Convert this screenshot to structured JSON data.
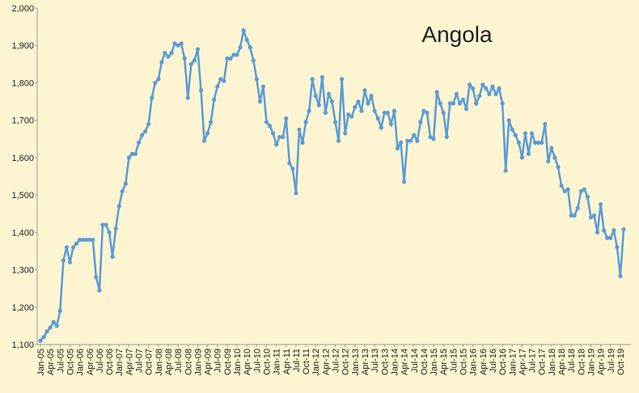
{
  "chart_data": {
    "type": "line",
    "title": "Angola",
    "categories": [
      "Jan-05",
      null,
      null,
      "Apr-05",
      null,
      null,
      "Jul-05",
      null,
      null,
      "Oct-05",
      null,
      null,
      "Jan-06",
      null,
      null,
      "Apr-06",
      null,
      null,
      "Jul-06",
      null,
      null,
      "Oct-06",
      null,
      null,
      "Jan-07",
      null,
      null,
      "Apr-07",
      null,
      null,
      "Jul-07",
      null,
      null,
      "Oct-07",
      null,
      null,
      "Jan-08",
      null,
      null,
      "Apr-08",
      null,
      null,
      "Jul-08",
      null,
      null,
      "Oct-08",
      null,
      null,
      "Jan-09",
      null,
      null,
      "Apr-09",
      null,
      null,
      "Jul-09",
      null,
      null,
      "Oct-09",
      null,
      null,
      "Jan-10",
      null,
      null,
      "Apr-10",
      null,
      null,
      "Jul-10",
      null,
      null,
      "Oct-10",
      null,
      null,
      "Jan-11",
      null,
      null,
      "Apr-11",
      null,
      null,
      "Jul-11",
      null,
      null,
      "Oct-11",
      null,
      null,
      "Jan-12",
      null,
      null,
      "Apr-12",
      null,
      null,
      "Jul-12",
      null,
      null,
      "Oct-12",
      null,
      null,
      "Jan-13",
      null,
      null,
      "Apr-13",
      null,
      null,
      "Jul-13",
      null,
      null,
      "Oct-13",
      null,
      null,
      "Jan-14",
      null,
      null,
      "Apr-14",
      null,
      null,
      "Jul-14",
      null,
      null,
      "Oct-14",
      null,
      null,
      "Jan-15",
      null,
      null,
      "Apr-15",
      null,
      null,
      "Jul-15",
      null,
      null,
      "Oct-15",
      null,
      null,
      "Jan-16",
      null,
      null,
      "Apr-16",
      null,
      null,
      "Jul-16",
      null,
      null,
      "Oct-16",
      null,
      null,
      "Jan-17",
      null,
      null,
      "Apr-17",
      null,
      null,
      "Jul-17",
      null,
      null,
      "Oct-17",
      null,
      null,
      "Jan-18",
      null,
      null,
      "Apr-18",
      null,
      null,
      "Jul-18",
      null,
      null,
      "Oct-18",
      null,
      null,
      "Jan-19",
      null,
      null,
      "Apr-19",
      null,
      null,
      "Jul-19",
      null,
      null,
      "Oct-19",
      null
    ],
    "values": [
      1110,
      1120,
      1135,
      1145,
      1160,
      1150,
      1190,
      1325,
      1360,
      1320,
      1360,
      1370,
      1380,
      1380,
      1380,
      1380,
      1380,
      1280,
      1245,
      1420,
      1420,
      1400,
      1335,
      1410,
      1470,
      1510,
      1530,
      1600,
      1610,
      1610,
      1640,
      1660,
      1670,
      1690,
      1760,
      1800,
      1810,
      1855,
      1880,
      1870,
      1880,
      1905,
      1900,
      1905,
      1865,
      1760,
      1850,
      1860,
      1890,
      1780,
      1645,
      1665,
      1695,
      1755,
      1790,
      1810,
      1805,
      1865,
      1865,
      1875,
      1875,
      1895,
      1940,
      1915,
      1895,
      1860,
      1810,
      1750,
      1790,
      1695,
      1685,
      1665,
      1635,
      1655,
      1655,
      1705,
      1585,
      1570,
      1505,
      1675,
      1640,
      1695,
      1725,
      1810,
      1765,
      1740,
      1815,
      1720,
      1770,
      1750,
      1695,
      1645,
      1810,
      1665,
      1715,
      1710,
      1735,
      1750,
      1725,
      1780,
      1745,
      1765,
      1725,
      1705,
      1680,
      1720,
      1720,
      1690,
      1725,
      1625,
      1640,
      1535,
      1645,
      1645,
      1660,
      1645,
      1695,
      1725,
      1720,
      1655,
      1650,
      1775,
      1745,
      1720,
      1655,
      1745,
      1745,
      1770,
      1745,
      1755,
      1730,
      1795,
      1785,
      1745,
      1765,
      1795,
      1785,
      1770,
      1790,
      1770,
      1785,
      1745,
      1565,
      1700,
      1675,
      1660,
      1640,
      1600,
      1665,
      1610,
      1665,
      1640,
      1640,
      1640,
      1690,
      1590,
      1625,
      1600,
      1575,
      1525,
      1510,
      1515,
      1445,
      1445,
      1465,
      1510,
      1515,
      1495,
      1440,
      1445,
      1400,
      1475,
      1405,
      1385,
      1385,
      1405,
      1360,
      1283,
      1408
    ],
    "color": "#5b9bd5",
    "ylim": [
      1100,
      2000
    ],
    "yticks": [
      {
        "value": 1100,
        "label": "1,100"
      },
      {
        "value": 1200,
        "label": "1,200"
      },
      {
        "value": 1300,
        "label": "1,300"
      },
      {
        "value": 1400,
        "label": "1,400"
      },
      {
        "value": 1500,
        "label": "1,500"
      },
      {
        "value": 1600,
        "label": "1,600"
      },
      {
        "value": 1700,
        "label": "1,700"
      },
      {
        "value": 1800,
        "label": "1,800"
      },
      {
        "value": 1900,
        "label": "1,900"
      },
      {
        "value": 2000,
        "label": "2,000"
      }
    ],
    "grid": false
  }
}
